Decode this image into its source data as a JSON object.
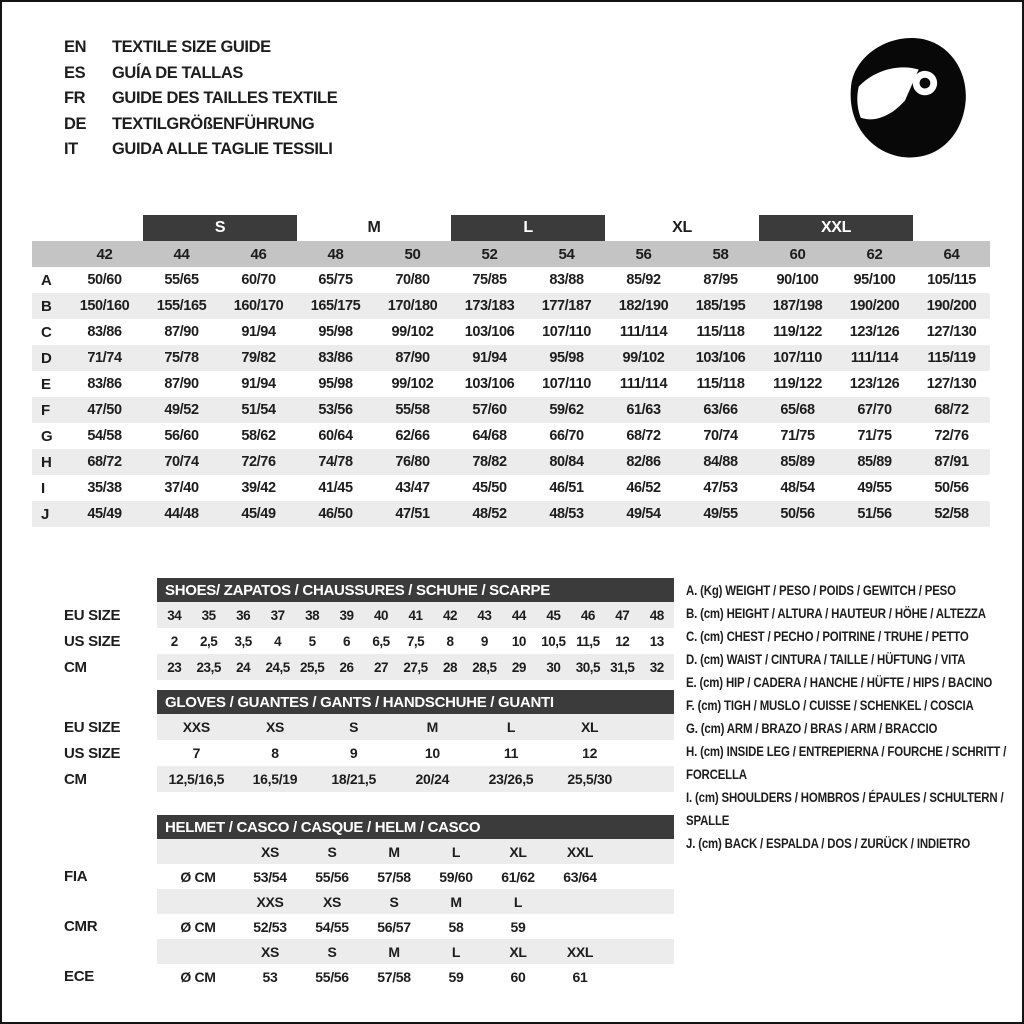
{
  "colors": {
    "dark_bar": "#3b3b3b",
    "column_band": "#c4c4c4",
    "row_shade": "#ececec",
    "text": "#1d1d1d",
    "icon": "#080808"
  },
  "title_block": {
    "items": [
      {
        "code": "EN",
        "label": "TEXTILE SIZE GUIDE"
      },
      {
        "code": "ES",
        "label": "GUÍA DE TALLAS"
      },
      {
        "code": "FR",
        "label": "GUIDE DES TAILLES TEXTILE"
      },
      {
        "code": "DE",
        "label": "TEXTILGRÖßENFÜHRUNG"
      },
      {
        "code": "IT",
        "label": "GUIDA ALLE TAGLIE TESSILI"
      }
    ]
  },
  "helmet_icon_name": "full-face-helmet-icon",
  "main_table": {
    "size_groups": [
      {
        "label": "S",
        "dark": true,
        "span": [
          "44",
          "46"
        ]
      },
      {
        "label": "M",
        "dark": false,
        "span": [
          "48",
          "50"
        ]
      },
      {
        "label": "L",
        "dark": true,
        "span": [
          "52",
          "54"
        ]
      },
      {
        "label": "XL",
        "dark": false,
        "span": [
          "56",
          "58"
        ]
      },
      {
        "label": "XXL",
        "dark": true,
        "span": [
          "60",
          "62"
        ]
      }
    ],
    "columns": [
      "42",
      "44",
      "46",
      "48",
      "50",
      "52",
      "54",
      "56",
      "58",
      "60",
      "62",
      "64"
    ],
    "rows": [
      {
        "label": "A",
        "values": [
          "50/60",
          "55/65",
          "60/70",
          "65/75",
          "70/80",
          "75/85",
          "83/88",
          "85/92",
          "87/95",
          "90/100",
          "95/100",
          "105/115"
        ]
      },
      {
        "label": "B",
        "values": [
          "150/160",
          "155/165",
          "160/170",
          "165/175",
          "170/180",
          "173/183",
          "177/187",
          "182/190",
          "185/195",
          "187/198",
          "190/200",
          "190/200"
        ]
      },
      {
        "label": "C",
        "values": [
          "83/86",
          "87/90",
          "91/94",
          "95/98",
          "99/102",
          "103/106",
          "107/110",
          "111/114",
          "115/118",
          "119/122",
          "123/126",
          "127/130"
        ]
      },
      {
        "label": "D",
        "values": [
          "71/74",
          "75/78",
          "79/82",
          "83/86",
          "87/90",
          "91/94",
          "95/98",
          "99/102",
          "103/106",
          "107/110",
          "111/114",
          "115/119"
        ]
      },
      {
        "label": "E",
        "values": [
          "83/86",
          "87/90",
          "91/94",
          "95/98",
          "99/102",
          "103/106",
          "107/110",
          "111/114",
          "115/118",
          "119/122",
          "123/126",
          "127/130"
        ]
      },
      {
        "label": "F",
        "values": [
          "47/50",
          "49/52",
          "51/54",
          "53/56",
          "55/58",
          "57/60",
          "59/62",
          "61/63",
          "63/66",
          "65/68",
          "67/70",
          "68/72"
        ]
      },
      {
        "label": "G",
        "values": [
          "54/58",
          "56/60",
          "58/62",
          "60/64",
          "62/66",
          "64/68",
          "66/70",
          "68/72",
          "70/74",
          "71/75",
          "71/75",
          "72/76"
        ]
      },
      {
        "label": "H",
        "values": [
          "68/72",
          "70/74",
          "72/76",
          "74/78",
          "76/80",
          "78/82",
          "80/84",
          "82/86",
          "84/88",
          "85/89",
          "85/89",
          "87/91"
        ]
      },
      {
        "label": "I",
        "values": [
          "35/38",
          "37/40",
          "39/42",
          "41/45",
          "43/47",
          "45/50",
          "46/51",
          "46/52",
          "47/53",
          "48/54",
          "49/55",
          "50/56"
        ]
      },
      {
        "label": "J",
        "values": [
          "45/49",
          "44/48",
          "45/49",
          "46/50",
          "47/51",
          "48/52",
          "48/53",
          "49/54",
          "49/55",
          "50/56",
          "51/56",
          "52/58"
        ]
      }
    ]
  },
  "shoes_table": {
    "title": "SHOES/ ZAPATOS / CHAUSSURES / SCHUHE / SCARPE",
    "rows": [
      {
        "label": "EU SIZE",
        "shaded": true,
        "values": [
          "34",
          "35",
          "36",
          "37",
          "38",
          "39",
          "40",
          "41",
          "42",
          "43",
          "44",
          "45",
          "46",
          "47",
          "48"
        ]
      },
      {
        "label": "US SIZE",
        "shaded": false,
        "values": [
          "2",
          "2,5",
          "3,5",
          "4",
          "5",
          "6",
          "6,5",
          "7,5",
          "8",
          "9",
          "10",
          "10,5",
          "11,5",
          "12",
          "13"
        ]
      },
      {
        "label": "CM",
        "shaded": true,
        "values": [
          "23",
          "23,5",
          "24",
          "24,5",
          "25,5",
          "26",
          "27",
          "27,5",
          "28",
          "28,5",
          "29",
          "30",
          "30,5",
          "31,5",
          "32"
        ]
      }
    ]
  },
  "gloves_table": {
    "title": "GLOVES / GUANTES / GANTS / HANDSCHUHE / GUANTI",
    "rows": [
      {
        "label": "EU SIZE",
        "shaded": true,
        "values": [
          "XXS",
          "XS",
          "S",
          "M",
          "L",
          "XL"
        ]
      },
      {
        "label": "US SIZE",
        "shaded": false,
        "values": [
          "7",
          "8",
          "9",
          "10",
          "11",
          "12"
        ]
      },
      {
        "label": "CM",
        "shaded": true,
        "values": [
          "12,5/16,5",
          "16,5/19",
          "18/21,5",
          "20/24",
          "23/26,5",
          "25,5/30"
        ]
      }
    ]
  },
  "helmet_table": {
    "title": "HELMET / CASCO / CASQUE / HELM / CASCO",
    "unit_label": "Ø CM",
    "sections": [
      {
        "label": "FIA",
        "sizes": [
          "XS",
          "S",
          "M",
          "L",
          "XL",
          "XXL"
        ],
        "values": [
          "53/54",
          "55/56",
          "57/58",
          "59/60",
          "61/62",
          "63/64"
        ]
      },
      {
        "label": "CMR",
        "sizes": [
          "XXS",
          "XS",
          "S",
          "M",
          "L",
          ""
        ],
        "values": [
          "52/53",
          "54/55",
          "56/57",
          "58",
          "59",
          ""
        ]
      },
      {
        "label": "ECE",
        "sizes": [
          "XS",
          "S",
          "M",
          "L",
          "XL",
          "XXL"
        ],
        "values": [
          "53",
          "55/56",
          "57/58",
          "59",
          "60",
          "61"
        ]
      }
    ]
  },
  "legend": {
    "items": [
      "A. (Kg) WEIGHT / PESO / POIDS / GEWITCH / PESO",
      "B. (cm) HEIGHT / ALTURA / HAUTEUR / HÖHE / ALTEZZA",
      "C. (cm) CHEST / PECHO / POITRINE / TRUHE / PETTO",
      "D. (cm) WAIST / CINTURA / TAILLE / HÜFTUNG / VITA",
      "E. (cm) HIP / CADERA / HANCHE / HÜFTE / HIPS /  BACINO",
      "F. (cm) TIGH / MUSLO / CUISSE / SCHENKEL / COSCIA",
      "G. (cm) ARM  / BRAZO / BRAS / ARM / BRACCIO",
      "H. (cm) INSIDE LEG / ENTREPIERNA / FOURCHE / SCHRITT / FORCELLA",
      "I.  (cm) SHOULDERS / HOMBROS / ÉPAULES / SCHULTERN / SPALLE",
      "J. (cm) BACK / ESPALDA / DOS / ZURÜCK / INDIETRO"
    ]
  }
}
